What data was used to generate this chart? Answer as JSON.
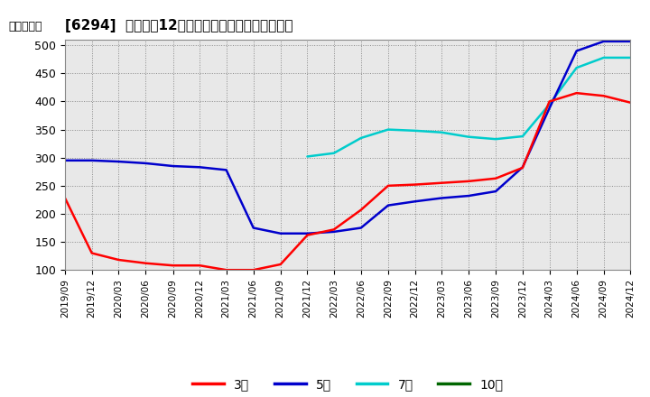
{
  "title": "[6294]  経常利益12か月移動合計の標準偏差の推移",
  "ylabel": "（百万円）",
  "ylim": [
    100,
    510
  ],
  "yticks": [
    100,
    150,
    200,
    250,
    300,
    350,
    400,
    450,
    500
  ],
  "background_color": "#ffffff",
  "plot_bg_color": "#e8e8e8",
  "grid_color": "#999999",
  "series": {
    "3年": {
      "color": "#ff0000",
      "x": [
        "2019/09",
        "2019/12",
        "2020/03",
        "2020/06",
        "2020/09",
        "2020/12",
        "2021/03",
        "2021/06",
        "2021/09",
        "2021/12",
        "2022/03",
        "2022/06",
        "2022/09",
        "2022/12",
        "2023/03",
        "2023/06",
        "2023/09",
        "2023/12",
        "2024/03",
        "2024/06",
        "2024/09",
        "2024/12"
      ],
      "y": [
        228,
        130,
        118,
        112,
        108,
        108,
        100,
        100,
        110,
        162,
        172,
        207,
        250,
        252,
        255,
        258,
        263,
        282,
        400,
        415,
        410,
        398
      ]
    },
    "5年": {
      "color": "#0000cc",
      "x": [
        "2019/09",
        "2019/12",
        "2020/03",
        "2020/06",
        "2020/09",
        "2020/12",
        "2021/03",
        "2021/06",
        "2021/09",
        "2021/12",
        "2022/03",
        "2022/06",
        "2022/09",
        "2022/12",
        "2023/03",
        "2023/06",
        "2023/09",
        "2023/12",
        "2024/03",
        "2024/06",
        "2024/09",
        "2024/12"
      ],
      "y": [
        295,
        295,
        293,
        290,
        285,
        283,
        278,
        175,
        165,
        165,
        168,
        175,
        215,
        222,
        228,
        232,
        240,
        283,
        388,
        490,
        507,
        507
      ]
    },
    "7年": {
      "color": "#00cccc",
      "x": [
        "2021/12",
        "2022/03",
        "2022/06",
        "2022/09",
        "2022/12",
        "2023/03",
        "2023/06",
        "2023/09",
        "2023/12",
        "2024/03",
        "2024/06",
        "2024/09",
        "2024/12"
      ],
      "y": [
        302,
        308,
        335,
        350,
        348,
        345,
        337,
        333,
        338,
        395,
        460,
        478,
        478
      ]
    },
    "10年": {
      "color": "#006600",
      "x": [],
      "y": []
    }
  },
  "legend_names": [
    "3年",
    "5年",
    "7年",
    "10年"
  ],
  "legend_colors": [
    "#ff0000",
    "#0000cc",
    "#00cccc",
    "#006600"
  ],
  "xtick_labels": [
    "2019/09",
    "2019/12",
    "2020/03",
    "2020/06",
    "2020/09",
    "2020/12",
    "2021/03",
    "2021/06",
    "2021/09",
    "2021/12",
    "2022/03",
    "2022/06",
    "2022/09",
    "2022/12",
    "2023/03",
    "2023/06",
    "2023/09",
    "2023/12",
    "2024/03",
    "2024/06",
    "2024/09",
    "2024/12"
  ]
}
